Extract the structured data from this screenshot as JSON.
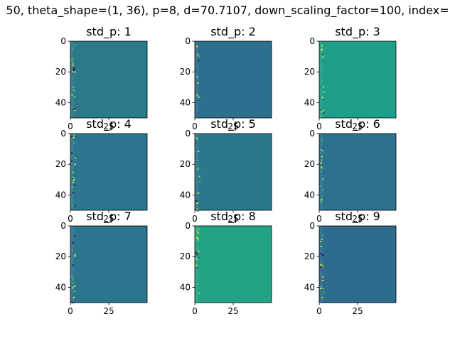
{
  "suptitle": "50, theta_shape=(1, 36), p=8, d=70.7107, down_scaling_factor=100, index=",
  "chart_data": {
    "type": "heatmap",
    "layout": "3x3 grid of image subplots",
    "colormap": "viridis",
    "xlim": [
      0,
      50
    ],
    "ylim": [
      50,
      0
    ],
    "xticks": [
      0,
      25
    ],
    "yticks": [
      0,
      20,
      40
    ],
    "panels": [
      {
        "title": "std_p: 1",
        "background": "#2a7a8a"
      },
      {
        "title": "std_p: 2",
        "background": "#2d6f8e"
      },
      {
        "title": "std_p: 3",
        "background": "#1f9e8a"
      },
      {
        "title": "std_p: 4",
        "background": "#2b768e"
      },
      {
        "title": "std_p: 5",
        "background": "#2a788e"
      },
      {
        "title": "std_p: 6",
        "background": "#2c728e"
      },
      {
        "title": "std_p: 7",
        "background": "#2b758e"
      },
      {
        "title": "std_p: 8",
        "background": "#22a285"
      },
      {
        "title": "std_p: 9",
        "background": "#2e6c8e"
      }
    ]
  }
}
